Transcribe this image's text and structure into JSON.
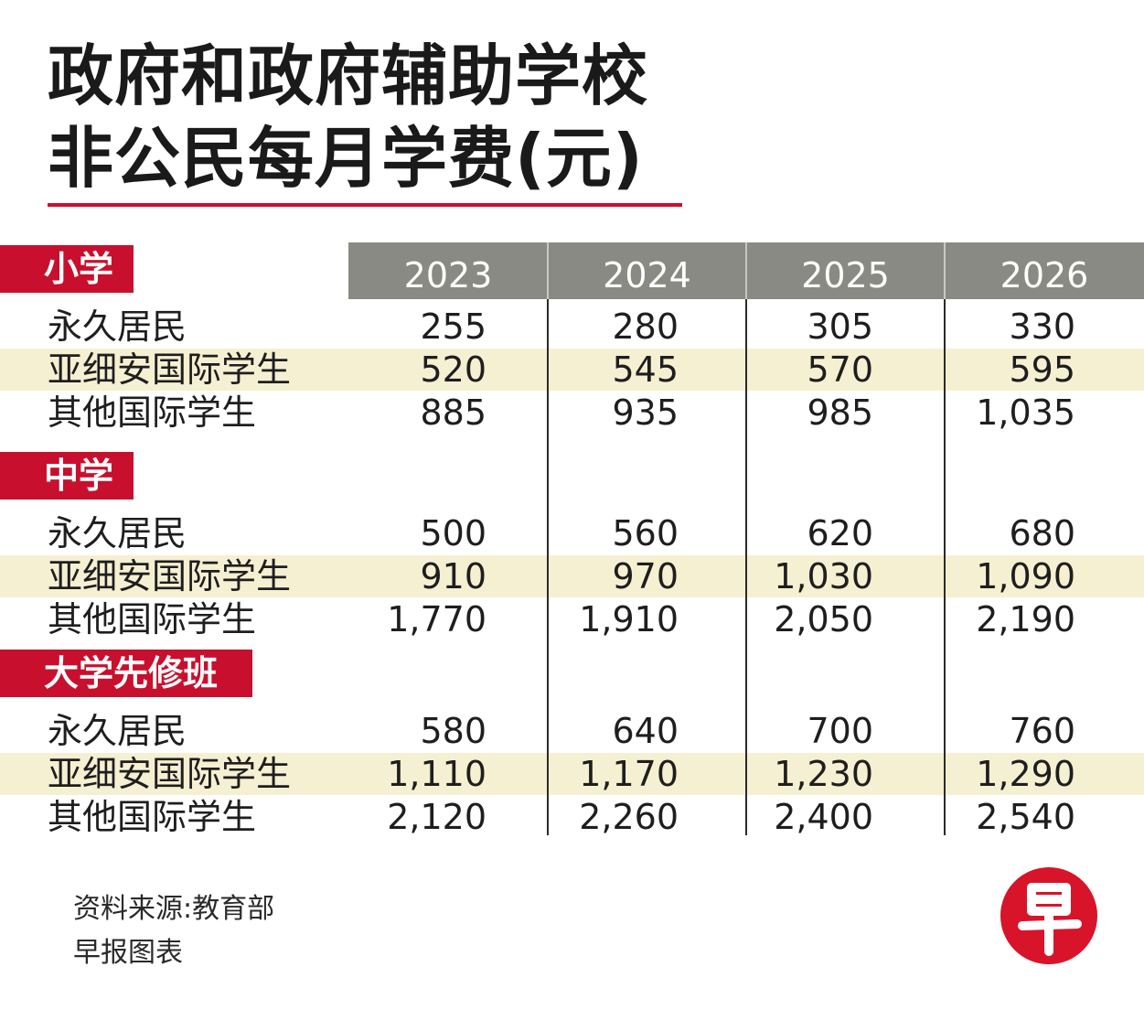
{
  "title_line1": "政府和政府辅助学校",
  "title_line2": "非公民每月学费(元)",
  "accent_color": "#c8102e",
  "header_color": "#8a8a84",
  "band_color": "#f5f0d2",
  "chart_data": {
    "type": "table",
    "columns": [
      "2023",
      "2024",
      "2025",
      "2026"
    ],
    "sections": [
      {
        "name": "小学",
        "rows": [
          {
            "label": "永久居民",
            "values": [
              "255",
              "280",
              "305",
              "330"
            ]
          },
          {
            "label": "亚细安国际学生",
            "values": [
              "520",
              "545",
              "570",
              "595"
            ]
          },
          {
            "label": "其他国际学生",
            "values": [
              "885",
              "935",
              "985",
              "1,035"
            ]
          }
        ]
      },
      {
        "name": "中学",
        "rows": [
          {
            "label": "永久居民",
            "values": [
              "500",
              "560",
              "620",
              "680"
            ]
          },
          {
            "label": "亚细安国际学生",
            "values": [
              "910",
              "970",
              "1,030",
              "1,090"
            ]
          },
          {
            "label": "其他国际学生",
            "values": [
              "1,770",
              "1,910",
              "2,050",
              "2,190"
            ]
          }
        ]
      },
      {
        "name": "大学先修班",
        "rows": [
          {
            "label": "永久居民",
            "values": [
              "580",
              "640",
              "700",
              "760"
            ]
          },
          {
            "label": "亚细安国际学生",
            "values": [
              "1,110",
              "1,170",
              "1,230",
              "1,290"
            ]
          },
          {
            "label": "其他国际学生",
            "values": [
              "2,120",
              "2,260",
              "2,400",
              "2,540"
            ]
          }
        ]
      }
    ]
  },
  "source_line1": "资料来源:教育部",
  "source_line2": "早报图表",
  "logo_icon": "zaobao-logo-icon"
}
